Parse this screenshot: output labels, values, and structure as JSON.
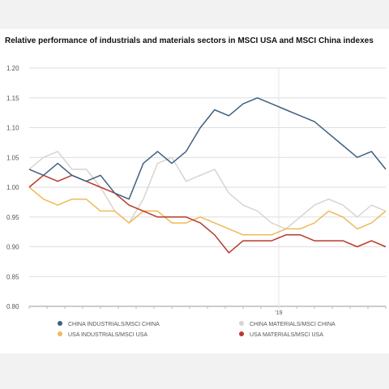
{
  "colors": {
    "china_industrials": "#3f6080",
    "china_materials": "#d8d4d0",
    "usa_industrials": "#f0b858",
    "usa_materials": "#b83a2a",
    "grid": "#dedede",
    "axis_text": "#555555"
  },
  "chart_data": {
    "type": "line",
    "title": "Relative performance of industrials and materials sectors in MSCI USA and MSCI China indexes",
    "xlabel": "",
    "ylabel": "",
    "ylim": [
      0.8,
      1.2
    ],
    "yticks": [
      "0.80",
      "0.85",
      "0.90",
      "0.95",
      "1.00",
      "1.05",
      "1.10",
      "1.15",
      "1.20"
    ],
    "xlim": [
      0,
      100
    ],
    "xtick_label": "'19",
    "xtick_at": 70,
    "grid": "horizontal",
    "legend_position": "bottom",
    "x": [
      0,
      4,
      8,
      12,
      16,
      20,
      24,
      28,
      32,
      36,
      40,
      44,
      48,
      52,
      56,
      60,
      64,
      68,
      72,
      76,
      80,
      84,
      88,
      92,
      96,
      100
    ],
    "series": [
      {
        "name": "CHINA INDUSTRIALS/MSCI CHINA",
        "color_key": "china_industrials",
        "values": [
          1.03,
          1.02,
          1.04,
          1.02,
          1.01,
          1.02,
          0.99,
          0.98,
          1.04,
          1.06,
          1.04,
          1.06,
          1.1,
          1.13,
          1.12,
          1.14,
          1.15,
          1.14,
          1.13,
          1.12,
          1.11,
          1.09,
          1.07,
          1.05,
          1.06,
          1.03
        ]
      },
      {
        "name": "CHINA MATERIALS/MSCI CHINA",
        "color_key": "china_materials",
        "values": [
          1.03,
          1.05,
          1.06,
          1.03,
          1.03,
          1.0,
          0.96,
          0.94,
          0.98,
          1.04,
          1.05,
          1.01,
          1.02,
          1.03,
          0.99,
          0.97,
          0.96,
          0.94,
          0.93,
          0.95,
          0.97,
          0.98,
          0.97,
          0.95,
          0.97,
          0.96
        ]
      },
      {
        "name": "USA INDUSTRIALS/MSCI USA",
        "color_key": "usa_industrials",
        "values": [
          1.0,
          0.98,
          0.97,
          0.98,
          0.98,
          0.96,
          0.96,
          0.94,
          0.96,
          0.96,
          0.94,
          0.94,
          0.95,
          0.94,
          0.93,
          0.92,
          0.92,
          0.92,
          0.93,
          0.93,
          0.94,
          0.96,
          0.95,
          0.93,
          0.94,
          0.96
        ]
      },
      {
        "name": "USA MATERIALS/MSCI USA",
        "color_key": "usa_materials",
        "values": [
          1.0,
          1.02,
          1.01,
          1.02,
          1.01,
          1.0,
          0.99,
          0.97,
          0.96,
          0.95,
          0.95,
          0.95,
          0.94,
          0.92,
          0.89,
          0.91,
          0.91,
          0.91,
          0.92,
          0.92,
          0.91,
          0.91,
          0.91,
          0.9,
          0.91,
          0.9
        ]
      }
    ]
  }
}
